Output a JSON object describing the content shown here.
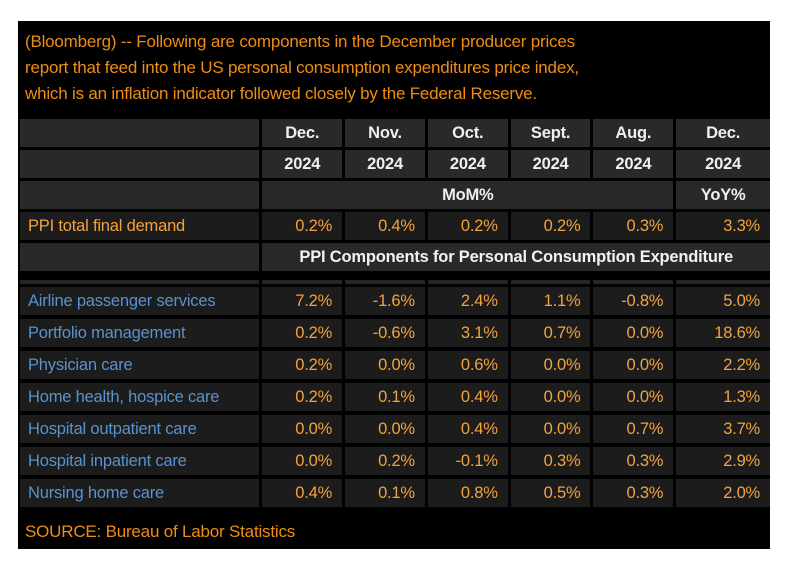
{
  "headline": {
    "line1": "(Bloomberg) -- Following are components in the December producer prices",
    "line2": "report that feed into the US personal consumption expenditures price index,",
    "line3": "which is an inflation indicator followed closely by the Federal Reserve."
  },
  "chart_data": {
    "type": "table",
    "columns": [
      {
        "month": "Dec.",
        "year": "2024"
      },
      {
        "month": "Nov.",
        "year": "2024"
      },
      {
        "month": "Oct.",
        "year": "2024"
      },
      {
        "month": "Sept.",
        "year": "2024"
      },
      {
        "month": "Aug.",
        "year": "2024"
      },
      {
        "month": "Dec.",
        "year": "2024"
      }
    ],
    "unit_row": {
      "mom": "MoM%",
      "yoy": "YoY%"
    },
    "summary_row": {
      "label": "PPI total final demand",
      "values": [
        "0.2%",
        "0.4%",
        "0.2%",
        "0.2%",
        "0.3%",
        "3.3%"
      ]
    },
    "section_header": "PPI Components for Personal Consumption Expenditure",
    "rows": [
      {
        "label": "Airline passenger services",
        "values": [
          "7.2%",
          "-1.6%",
          "2.4%",
          "1.1%",
          "-0.8%",
          "5.0%"
        ]
      },
      {
        "label": "Portfolio management",
        "values": [
          "0.2%",
          "-0.6%",
          "3.1%",
          "0.7%",
          "0.0%",
          "18.6%"
        ]
      },
      {
        "label": "Physician care",
        "values": [
          "0.2%",
          "0.0%",
          "0.6%",
          "0.0%",
          "0.0%",
          "2.2%"
        ]
      },
      {
        "label": "Home health, hospice care",
        "values": [
          "0.2%",
          "0.1%",
          "0.4%",
          "0.0%",
          "0.0%",
          "1.3%"
        ]
      },
      {
        "label": "Hospital outpatient care",
        "values": [
          "0.0%",
          "0.0%",
          "0.4%",
          "0.0%",
          "0.7%",
          "3.7%"
        ]
      },
      {
        "label": "Hospital inpatient care",
        "values": [
          "0.0%",
          "0.2%",
          "-0.1%",
          "0.3%",
          "0.3%",
          "2.9%"
        ]
      },
      {
        "label": "Nursing home care",
        "values": [
          "0.4%",
          "0.1%",
          "0.8%",
          "0.5%",
          "0.3%",
          "2.0%"
        ]
      }
    ]
  },
  "source": "SOURCE: Bureau of Labor Statistics",
  "colors": {
    "headline_orange": "#ee8d15",
    "value_orange": "#f4a23c",
    "label_blue": "#5793d0",
    "header_text": "#efefef",
    "header_cell_bg": "#292929",
    "data_cell_bg": "#1c1c1c",
    "panel_bg": "#000000"
  }
}
